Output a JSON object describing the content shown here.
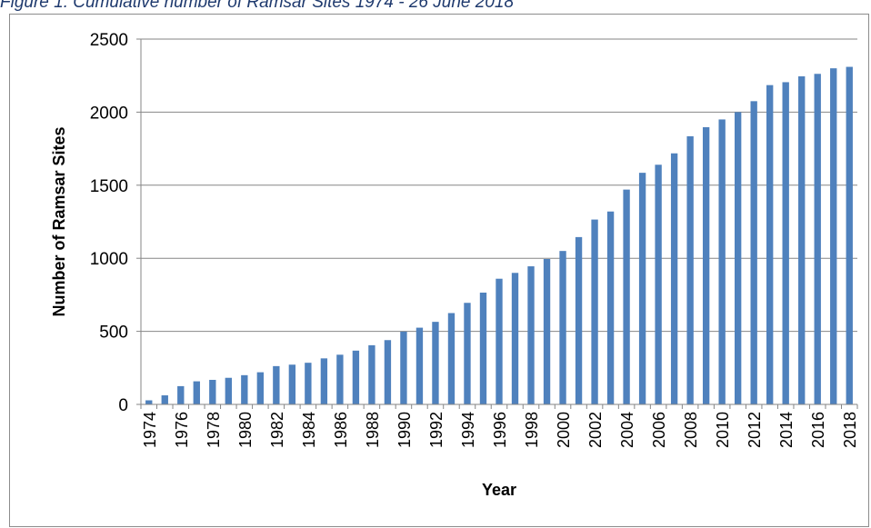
{
  "figure": {
    "caption": "Figure 1: Cumulative number of Ramsar Sites 1974 - 26 June 2018"
  },
  "chart_data": {
    "type": "bar",
    "xlabel": "Year",
    "ylabel": "Number of Ramsar Sites",
    "ylim": [
      0,
      2500
    ],
    "yticks": [
      0,
      500,
      1000,
      1500,
      2000,
      2500
    ],
    "grid": true,
    "legend": "none",
    "bar_color": "#4f81bd",
    "categories": [
      "1974",
      "1975",
      "1976",
      "1977",
      "1978",
      "1979",
      "1980",
      "1981",
      "1982",
      "1983",
      "1984",
      "1985",
      "1986",
      "1987",
      "1988",
      "1989",
      "1990",
      "1991",
      "1992",
      "1993",
      "1994",
      "1995",
      "1996",
      "1997",
      "1998",
      "1999",
      "2000",
      "2001",
      "2002",
      "2003",
      "2004",
      "2005",
      "2006",
      "2007",
      "2008",
      "2009",
      "2010",
      "2011",
      "2012",
      "2013",
      "2014",
      "2015",
      "2016",
      "2017",
      "2018"
    ],
    "tick_labels": [
      "1974",
      "1976",
      "1978",
      "1980",
      "1982",
      "1984",
      "1986",
      "1988",
      "1990",
      "1992",
      "1994",
      "1996",
      "1998",
      "2000",
      "2002",
      "2004",
      "2006",
      "2008",
      "2010",
      "2012",
      "2014",
      "2016",
      "2018"
    ],
    "values": [
      28,
      62,
      125,
      158,
      168,
      182,
      200,
      220,
      262,
      272,
      285,
      315,
      340,
      368,
      405,
      440,
      498,
      525,
      565,
      625,
      695,
      765,
      860,
      900,
      945,
      995,
      1050,
      1145,
      1265,
      1320,
      1470,
      1585,
      1640,
      1718,
      1835,
      1897,
      1950,
      2000,
      2075,
      2185,
      2205,
      2245,
      2262,
      2300,
      2310
    ]
  }
}
